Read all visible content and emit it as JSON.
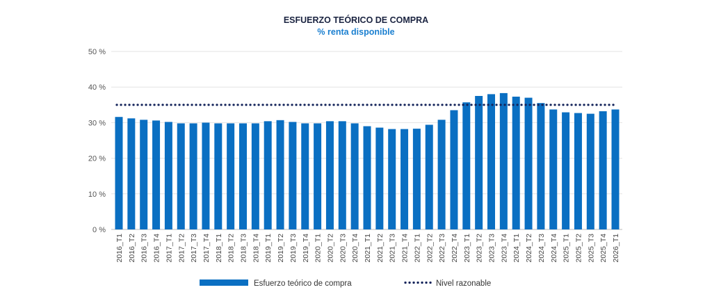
{
  "chart_data": {
    "type": "bar",
    "title": "ESFUERZO TEÓRICO DE COMPRA",
    "subtitle": "% renta disponible",
    "categories": [
      "2016_T1",
      "2016_T2",
      "2016_T3",
      "2016_T4",
      "2017_T1",
      "2017_T2",
      "2017_T3",
      "2017_T4",
      "2018_T1",
      "2018_T2",
      "2018_T3",
      "2018_T4",
      "2019_T1",
      "2019_T2",
      "2019_T3",
      "2019_T4",
      "2020_T1",
      "2020_T2",
      "2020_T3",
      "2020_T4",
      "2021_T1",
      "2021_T2",
      "2021_T3",
      "2021_T4",
      "2022_T1",
      "2022_T2",
      "2022_T3",
      "2022_T4",
      "2023_T1",
      "2023_T2",
      "2023_T3",
      "2023_T4",
      "2024_T1",
      "2024_T2",
      "2024_T3",
      "2024_T4",
      "2025_T1",
      "2025_T2",
      "2025_T3",
      "2025_T4",
      "2026_T1"
    ],
    "series": [
      {
        "name": "Esfuerzo teórico de compra",
        "type": "bar",
        "color": "#0a6fc2",
        "values": [
          31.6,
          31.2,
          30.8,
          30.6,
          30.2,
          29.8,
          29.8,
          30.0,
          29.8,
          29.8,
          29.8,
          29.8,
          30.4,
          30.7,
          30.2,
          29.8,
          29.8,
          30.4,
          30.4,
          29.8,
          29.0,
          28.6,
          28.2,
          28.2,
          28.3,
          29.4,
          30.8,
          33.5,
          35.7,
          37.5,
          38.0,
          38.3,
          37.3,
          37.0,
          35.5,
          33.7,
          32.9,
          32.7,
          32.5,
          33.2,
          33.7
        ]
      },
      {
        "name": "Nivel razonable",
        "type": "line",
        "style": "dotted",
        "color": "#13235a",
        "value": 35
      }
    ],
    "yticks": [
      "0 %",
      "10 %",
      "20 %",
      "30 %",
      "40 %",
      "50 %"
    ],
    "ylim": [
      0,
      50
    ],
    "grid": true,
    "legend": "bottom"
  }
}
